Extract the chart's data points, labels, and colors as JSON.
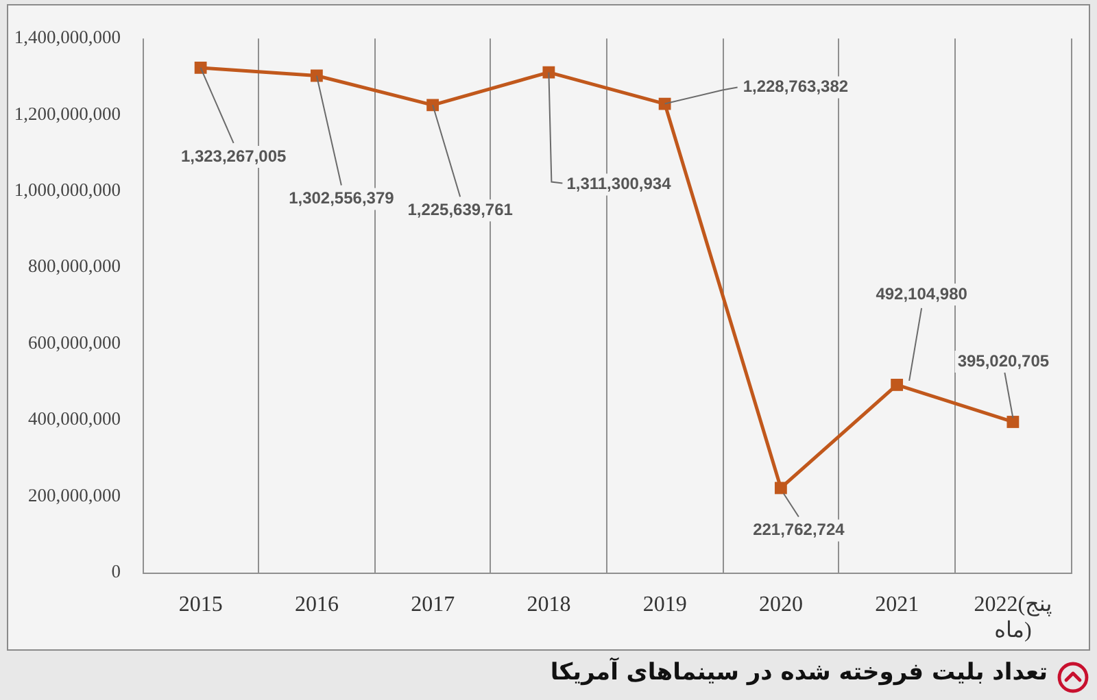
{
  "chart_data": {
    "type": "line",
    "title": "تعداد بلیت فروخته شده در سینماهای آمریکا",
    "categories": [
      "2015",
      "2016",
      "2017",
      "2018",
      "2019",
      "2020",
      "2021",
      "2022(پنج ماه)"
    ],
    "values": [
      1323267005,
      1302556379,
      1225639761,
      1311300934,
      1228763382,
      221762724,
      492104980,
      395020705
    ],
    "value_labels": [
      "1,323,267,005",
      "1,302,556,379",
      "1,225,639,761",
      "1,311,300,934",
      "1,228,763,382",
      "221,762,724",
      "492,104,980",
      "395,020,705"
    ],
    "color": "#c1581c",
    "marker": "square",
    "line_style": "solid",
    "grid": "x",
    "ylim": [
      0,
      1400000000
    ],
    "yticks": [
      {
        "value": 0,
        "label": "0"
      },
      {
        "value": 200000000,
        "label": "200,000,000"
      },
      {
        "value": 400000000,
        "label": "400,000,000"
      },
      {
        "value": 600000000,
        "label": "600,000,000"
      },
      {
        "value": 800000000,
        "label": "800,000,000"
      },
      {
        "value": 1000000000,
        "label": "1,000,000,000"
      },
      {
        "value": 1200000000,
        "label": "1,200,000,000"
      },
      {
        "value": 1400000000,
        "label": "1,400,000,000"
      }
    ]
  }
}
